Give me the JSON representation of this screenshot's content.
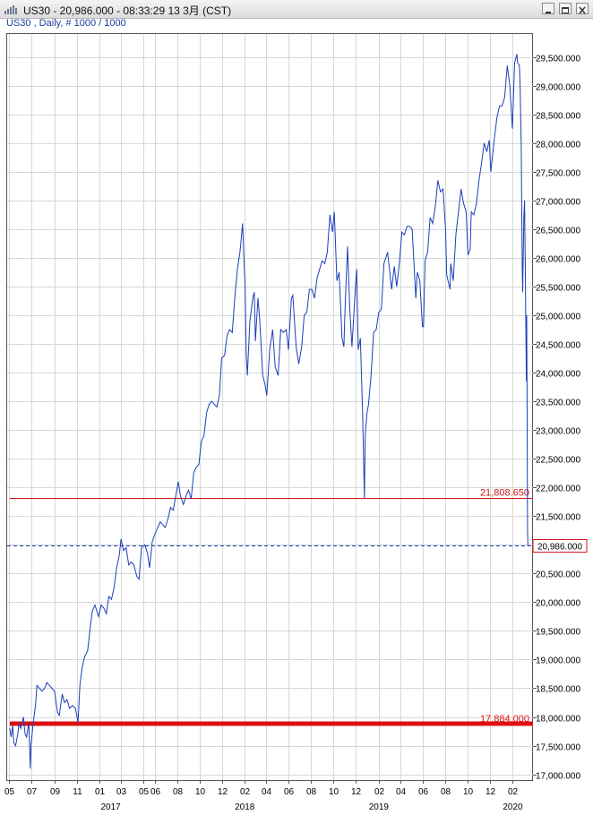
{
  "window": {
    "title": "US30 - 20,986.000 - 08:33:29  13 3月 (CST)",
    "subtitle": "US30 , Daily, # 1000 / 1000"
  },
  "chart_data": {
    "type": "line",
    "series": [
      {
        "color": "#1a3fb8",
        "points": [
          [
            "2016-05-02",
            17800
          ],
          [
            "2016-05-06",
            17650
          ],
          [
            "2016-05-10",
            17850
          ],
          [
            "2016-05-13",
            17550
          ],
          [
            "2016-05-18",
            17500
          ],
          [
            "2016-05-24",
            17700
          ],
          [
            "2016-05-27",
            17880
          ],
          [
            "2016-06-01",
            17800
          ],
          [
            "2016-06-08",
            18000
          ],
          [
            "2016-06-13",
            17700
          ],
          [
            "2016-06-17",
            17650
          ],
          [
            "2016-06-23",
            17900
          ],
          [
            "2016-06-27",
            17100
          ],
          [
            "2016-06-29",
            17500
          ],
          [
            "2016-07-05",
            17900
          ],
          [
            "2016-07-11",
            18200
          ],
          [
            "2016-07-15",
            18550
          ],
          [
            "2016-07-22",
            18500
          ],
          [
            "2016-07-29",
            18450
          ],
          [
            "2016-08-05",
            18500
          ],
          [
            "2016-08-11",
            18600
          ],
          [
            "2016-08-18",
            18550
          ],
          [
            "2016-08-25",
            18500
          ],
          [
            "2016-09-01",
            18450
          ],
          [
            "2016-09-09",
            18080
          ],
          [
            "2016-09-14",
            18030
          ],
          [
            "2016-09-22",
            18400
          ],
          [
            "2016-09-28",
            18250
          ],
          [
            "2016-10-05",
            18300
          ],
          [
            "2016-10-12",
            18150
          ],
          [
            "2016-10-20",
            18200
          ],
          [
            "2016-10-28",
            18150
          ],
          [
            "2016-11-04",
            17900
          ],
          [
            "2016-11-09",
            18550
          ],
          [
            "2016-11-15",
            18850
          ],
          [
            "2016-11-22",
            19050
          ],
          [
            "2016-11-30",
            19150
          ],
          [
            "2016-12-07",
            19550
          ],
          [
            "2016-12-13",
            19850
          ],
          [
            "2016-12-20",
            19950
          ],
          [
            "2016-12-30",
            19750
          ],
          [
            "2017-01-06",
            19950
          ],
          [
            "2017-01-13",
            19900
          ],
          [
            "2017-01-20",
            19800
          ],
          [
            "2017-01-27",
            20100
          ],
          [
            "2017-02-03",
            20050
          ],
          [
            "2017-02-10",
            20250
          ],
          [
            "2017-02-17",
            20600
          ],
          [
            "2017-02-24",
            20800
          ],
          [
            "2017-03-01",
            21100
          ],
          [
            "2017-03-08",
            20900
          ],
          [
            "2017-03-15",
            20950
          ],
          [
            "2017-03-22",
            20650
          ],
          [
            "2017-03-29",
            20700
          ],
          [
            "2017-04-05",
            20650
          ],
          [
            "2017-04-13",
            20450
          ],
          [
            "2017-04-19",
            20400
          ],
          [
            "2017-04-26",
            20950
          ],
          [
            "2017-05-05",
            21000
          ],
          [
            "2017-05-12",
            20850
          ],
          [
            "2017-05-18",
            20600
          ],
          [
            "2017-05-25",
            21050
          ],
          [
            "2017-06-02",
            21200
          ],
          [
            "2017-06-09",
            21300
          ],
          [
            "2017-06-16",
            21400
          ],
          [
            "2017-06-23",
            21350
          ],
          [
            "2017-06-29",
            21300
          ],
          [
            "2017-07-07",
            21450
          ],
          [
            "2017-07-14",
            21650
          ],
          [
            "2017-07-21",
            21600
          ],
          [
            "2017-07-28",
            21850
          ],
          [
            "2017-08-04",
            22100
          ],
          [
            "2017-08-10",
            21850
          ],
          [
            "2017-08-18",
            21700
          ],
          [
            "2017-08-25",
            21850
          ],
          [
            "2017-09-01",
            21950
          ],
          [
            "2017-09-08",
            21800
          ],
          [
            "2017-09-15",
            22250
          ],
          [
            "2017-09-22",
            22350
          ],
          [
            "2017-09-29",
            22400
          ],
          [
            "2017-10-06",
            22800
          ],
          [
            "2017-10-13",
            22900
          ],
          [
            "2017-10-20",
            23300
          ],
          [
            "2017-10-27",
            23450
          ],
          [
            "2017-11-03",
            23500
          ],
          [
            "2017-11-10",
            23450
          ],
          [
            "2017-11-17",
            23400
          ],
          [
            "2017-11-24",
            23600
          ],
          [
            "2017-11-30",
            24250
          ],
          [
            "2017-12-08",
            24300
          ],
          [
            "2017-12-15",
            24650
          ],
          [
            "2017-12-22",
            24750
          ],
          [
            "2017-12-29",
            24700
          ],
          [
            "2018-01-05",
            25300
          ],
          [
            "2018-01-12",
            25800
          ],
          [
            "2018-01-19",
            26100
          ],
          [
            "2018-01-26",
            26600
          ],
          [
            "2018-02-02",
            25500
          ],
          [
            "2018-02-05",
            24300
          ],
          [
            "2018-02-08",
            23950
          ],
          [
            "2018-02-15",
            24900
          ],
          [
            "2018-02-23",
            25300
          ],
          [
            "2018-02-27",
            25400
          ],
          [
            "2018-03-02",
            24550
          ],
          [
            "2018-03-09",
            25300
          ],
          [
            "2018-03-14",
            24900
          ],
          [
            "2018-03-22",
            23950
          ],
          [
            "2018-03-28",
            23800
          ],
          [
            "2018-04-02",
            23600
          ],
          [
            "2018-04-10",
            24400
          ],
          [
            "2018-04-18",
            24750
          ],
          [
            "2018-04-25",
            24100
          ],
          [
            "2018-05-03",
            23950
          ],
          [
            "2018-05-10",
            24750
          ],
          [
            "2018-05-17",
            24700
          ],
          [
            "2018-05-25",
            24750
          ],
          [
            "2018-05-31",
            24400
          ],
          [
            "2018-06-08",
            25300
          ],
          [
            "2018-06-12",
            25350
          ],
          [
            "2018-06-21",
            24450
          ],
          [
            "2018-06-28",
            24150
          ],
          [
            "2018-07-06",
            24450
          ],
          [
            "2018-07-13",
            25000
          ],
          [
            "2018-07-20",
            25050
          ],
          [
            "2018-07-27",
            25450
          ],
          [
            "2018-08-03",
            25450
          ],
          [
            "2018-08-10",
            25300
          ],
          [
            "2018-08-17",
            25650
          ],
          [
            "2018-08-24",
            25800
          ],
          [
            "2018-08-31",
            25950
          ],
          [
            "2018-09-07",
            25900
          ],
          [
            "2018-09-14",
            26100
          ],
          [
            "2018-09-21",
            26750
          ],
          [
            "2018-09-28",
            26450
          ],
          [
            "2018-10-03",
            26800
          ],
          [
            "2018-10-10",
            25600
          ],
          [
            "2018-10-16",
            25750
          ],
          [
            "2018-10-24",
            24600
          ],
          [
            "2018-10-29",
            24450
          ],
          [
            "2018-11-02",
            25250
          ],
          [
            "2018-11-08",
            26200
          ],
          [
            "2018-11-14",
            25100
          ],
          [
            "2018-11-20",
            24450
          ],
          [
            "2018-11-30",
            25550
          ],
          [
            "2018-12-03",
            25800
          ],
          [
            "2018-12-07",
            24400
          ],
          [
            "2018-12-13",
            24600
          ],
          [
            "2018-12-19",
            23300
          ],
          [
            "2018-12-24",
            21800
          ],
          [
            "2018-12-26",
            22900
          ],
          [
            "2018-12-31",
            23300
          ],
          [
            "2019-01-04",
            23450
          ],
          [
            "2019-01-11",
            23950
          ],
          [
            "2019-01-18",
            24700
          ],
          [
            "2019-01-25",
            24750
          ],
          [
            "2019-02-01",
            25050
          ],
          [
            "2019-02-08",
            25100
          ],
          [
            "2019-02-15",
            25900
          ],
          [
            "2019-02-25",
            26100
          ],
          [
            "2019-03-08",
            25450
          ],
          [
            "2019-03-15",
            25850
          ],
          [
            "2019-03-22",
            25500
          ],
          [
            "2019-03-29",
            25900
          ],
          [
            "2019-04-05",
            26450
          ],
          [
            "2019-04-12",
            26400
          ],
          [
            "2019-04-19",
            26550
          ],
          [
            "2019-04-26",
            26550
          ],
          [
            "2019-05-03",
            26500
          ],
          [
            "2019-05-13",
            25300
          ],
          [
            "2019-05-17",
            25750
          ],
          [
            "2019-05-24",
            25600
          ],
          [
            "2019-05-31",
            24800
          ],
          [
            "2019-06-03",
            24800
          ],
          [
            "2019-06-07",
            25950
          ],
          [
            "2019-06-14",
            26100
          ],
          [
            "2019-06-21",
            26700
          ],
          [
            "2019-06-28",
            26600
          ],
          [
            "2019-07-05",
            26900
          ],
          [
            "2019-07-12",
            27350
          ],
          [
            "2019-07-19",
            27150
          ],
          [
            "2019-07-26",
            27200
          ],
          [
            "2019-08-02",
            26500
          ],
          [
            "2019-08-05",
            25700
          ],
          [
            "2019-08-14",
            25450
          ],
          [
            "2019-08-16",
            25900
          ],
          [
            "2019-08-23",
            25600
          ],
          [
            "2019-08-30",
            26400
          ],
          [
            "2019-09-06",
            26800
          ],
          [
            "2019-09-13",
            27200
          ],
          [
            "2019-09-20",
            26950
          ],
          [
            "2019-09-27",
            26800
          ],
          [
            "2019-10-02",
            26050
          ],
          [
            "2019-10-08",
            26150
          ],
          [
            "2019-10-11",
            26800
          ],
          [
            "2019-10-18",
            26750
          ],
          [
            "2019-10-25",
            26950
          ],
          [
            "2019-11-01",
            27350
          ],
          [
            "2019-11-08",
            27650
          ],
          [
            "2019-11-15",
            28000
          ],
          [
            "2019-11-22",
            27850
          ],
          [
            "2019-11-29",
            28050
          ],
          [
            "2019-12-03",
            27500
          ],
          [
            "2019-12-13",
            28100
          ],
          [
            "2019-12-20",
            28450
          ],
          [
            "2019-12-27",
            28650
          ],
          [
            "2020-01-03",
            28650
          ],
          [
            "2020-01-10",
            28800
          ],
          [
            "2020-01-17",
            29350
          ],
          [
            "2020-01-24",
            28990
          ],
          [
            "2020-01-31",
            28250
          ],
          [
            "2020-02-06",
            29400
          ],
          [
            "2020-02-12",
            29550
          ],
          [
            "2020-02-14",
            29400
          ],
          [
            "2020-02-19",
            29350
          ],
          [
            "2020-02-21",
            28950
          ],
          [
            "2020-02-24",
            27950
          ],
          [
            "2020-02-25",
            27100
          ],
          [
            "2020-02-27",
            25750
          ],
          [
            "2020-02-28",
            25400
          ],
          [
            "2020-03-02",
            26700
          ],
          [
            "2020-03-04",
            27000
          ],
          [
            "2020-03-06",
            25850
          ],
          [
            "2020-03-09",
            23850
          ],
          [
            "2020-03-10",
            25000
          ],
          [
            "2020-03-11",
            23550
          ],
          [
            "2020-03-12",
            21300
          ],
          [
            "2020-03-13",
            20986
          ]
        ]
      }
    ],
    "y_range": [
      16900,
      29900
    ],
    "x_range": [
      "2016-04-25",
      "2020-03-27"
    ],
    "y_ticks": [
      "29,500.000",
      "29,000.000",
      "28,500.000",
      "28,000.000",
      "27,500.000",
      "27,000.000",
      "26,500.000",
      "26,000.000",
      "25,500.000",
      "25,000.000",
      "24,500.000",
      "24,000.000",
      "23,500.000",
      "23,000.000",
      "22,500.000",
      "22,000.000",
      "21,500.000",
      "21,000.000",
      "20,500.000",
      "20,000.000",
      "19,500.000",
      "19,000.000",
      "18,500.000",
      "18,000.000",
      "17,500.000",
      "17,000.000"
    ],
    "x_ticks": [
      {
        "label": "05",
        "date": "2016-05-01"
      },
      {
        "label": "07",
        "date": "2016-07-01"
      },
      {
        "label": "09",
        "date": "2016-09-01"
      },
      {
        "label": "11",
        "date": "2016-11-01"
      },
      {
        "label": "01",
        "date": "2017-01-01"
      },
      {
        "label": "03",
        "date": "2017-03-01"
      },
      {
        "label": "05",
        "date": "2017-05-01"
      },
      {
        "label": "06",
        "date": "2017-06-01"
      },
      {
        "label": "08",
        "date": "2017-08-01"
      },
      {
        "label": "10",
        "date": "2017-10-01"
      },
      {
        "label": "12",
        "date": "2017-12-01"
      },
      {
        "label": "02",
        "date": "2018-02-01"
      },
      {
        "label": "04",
        "date": "2018-04-01"
      },
      {
        "label": "06",
        "date": "2018-06-01"
      },
      {
        "label": "08",
        "date": "2018-08-01"
      },
      {
        "label": "10",
        "date": "2018-10-01"
      },
      {
        "label": "12",
        "date": "2018-12-01"
      },
      {
        "label": "02",
        "date": "2019-02-01"
      },
      {
        "label": "04",
        "date": "2019-04-01"
      },
      {
        "label": "06",
        "date": "2019-06-01"
      },
      {
        "label": "08",
        "date": "2019-08-01"
      },
      {
        "label": "10",
        "date": "2019-10-01"
      },
      {
        "label": "12",
        "date": "2019-12-01"
      },
      {
        "label": "02",
        "date": "2020-02-01"
      }
    ],
    "year_labels": [
      {
        "label": "2017",
        "date": "2017-02-01"
      },
      {
        "label": "2018",
        "date": "2018-02-01"
      },
      {
        "label": "2019",
        "date": "2019-02-01"
      },
      {
        "label": "2020",
        "date": "2020-02-01"
      }
    ],
    "horizontal_lines": [
      {
        "value": 21808.65,
        "label": "21,808.650",
        "color": "#d01818",
        "style": "thin"
      },
      {
        "value": 17884.0,
        "label": "17,884.000",
        "color": "#e01010",
        "style": "thick"
      }
    ],
    "current_price": {
      "value": 20986.0,
      "label": "20,986.000",
      "color": "#1a3fb8"
    },
    "grid": true
  }
}
